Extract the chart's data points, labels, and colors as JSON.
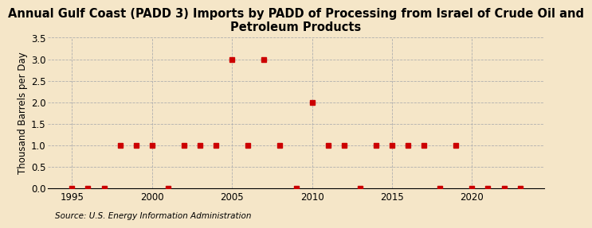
{
  "title": "Annual Gulf Coast (PADD 3) Imports by PADD of Processing from Israel of Crude Oil and\nPetroleum Products",
  "ylabel": "Thousand Barrels per Day",
  "source": "Source: U.S. Energy Information Administration",
  "xlim": [
    1993.5,
    2024.5
  ],
  "ylim": [
    0,
    3.5
  ],
  "yticks": [
    0.0,
    0.5,
    1.0,
    1.5,
    2.0,
    2.5,
    3.0,
    3.5
  ],
  "xticks": [
    1995,
    2000,
    2005,
    2010,
    2015,
    2020
  ],
  "background_color": "#f5e6c8",
  "plot_bg_color": "#f5e6c8",
  "data_years": [
    1995,
    1996,
    1997,
    1998,
    1999,
    2000,
    2001,
    2002,
    2003,
    2004,
    2005,
    2006,
    2007,
    2008,
    2009,
    2010,
    2011,
    2012,
    2013,
    2014,
    2015,
    2016,
    2017,
    2018,
    2019,
    2020,
    2021,
    2022,
    2023
  ],
  "data_values": [
    0,
    0,
    0,
    1,
    1,
    1,
    0,
    1,
    1,
    1,
    3,
    1,
    3,
    1,
    0,
    2,
    1,
    1,
    0,
    1,
    1,
    1,
    1,
    0,
    1,
    0,
    0,
    0,
    0
  ],
  "marker_color": "#cc0000",
  "marker_size": 4,
  "grid_color": "#b0b0b0",
  "title_fontsize": 10.5,
  "label_fontsize": 8.5,
  "tick_fontsize": 8.5,
  "source_fontsize": 7.5
}
